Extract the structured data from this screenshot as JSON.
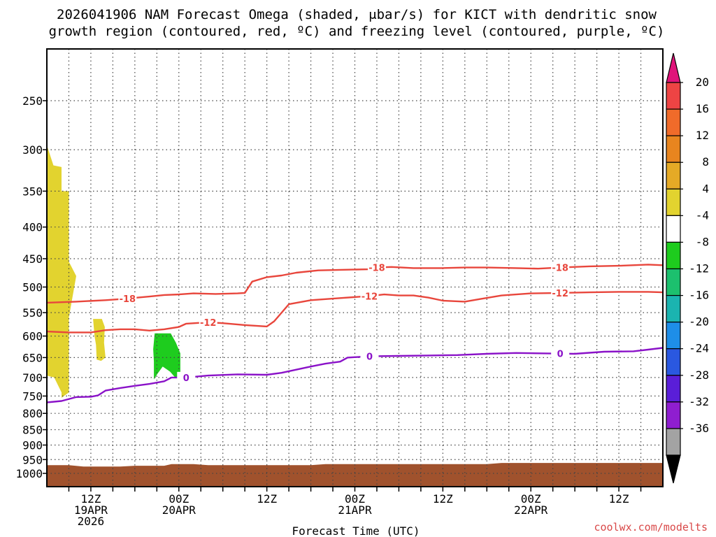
{
  "chart_data": {
    "type": "time-height contour",
    "title_line1": "2026041906 NAM Forecast Omega (shaded, μbar/s) for KICT with dendritic snow",
    "title_line2": "growth region (contoured, red, ºC) and freezing level (contoured, purple, ºC)",
    "xlabel": "Forecast Time (UTC)",
    "credit": "coolwx.com/modelts",
    "x_range_hours": [
      0,
      84
    ],
    "y_scale": "log-pressure",
    "y_range_mb": [
      200,
      1050
    ],
    "y_ticks": [
      250,
      300,
      350,
      400,
      450,
      500,
      550,
      600,
      650,
      700,
      750,
      800,
      850,
      900,
      950,
      1000
    ],
    "x_ticks": [
      {
        "hour": 6,
        "line1": "12Z",
        "line2": "19APR",
        "line3": "2026"
      },
      {
        "hour": 18,
        "line1": "00Z",
        "line2": "20APR",
        "line3": ""
      },
      {
        "hour": 30,
        "line1": "12Z",
        "line2": "",
        "line3": ""
      },
      {
        "hour": 42,
        "line1": "00Z",
        "line2": "21APR",
        "line3": ""
      },
      {
        "hour": 54,
        "line1": "12Z",
        "line2": "",
        "line3": ""
      },
      {
        "hour": 66,
        "line1": "00Z",
        "line2": "22APR",
        "line3": ""
      },
      {
        "hour": 78,
        "line1": "12Z",
        "line2": "",
        "line3": ""
      }
    ],
    "grid": true,
    "colorbar": {
      "labels": [
        "20",
        "16",
        "12",
        "8",
        "4",
        "-4",
        "-8",
        "-12",
        "-16",
        "-20",
        "-24",
        "-28",
        "-32",
        "-36"
      ],
      "colors": [
        "#ee4444",
        "#f06b2a",
        "#e8851f",
        "#e5aa26",
        "#e2d32f",
        "#ffffff",
        "#1ecc1e",
        "#1cc06e",
        "#1bb4b0",
        "#1e8ee8",
        "#2a58e0",
        "#5a1ed8",
        "#8f1ed0",
        "#a3a3a3"
      ],
      "top_arrow_color": "#e0147a",
      "bottom_arrow_color": "#000000"
    },
    "contours": [
      {
        "name": "-18",
        "color": "#e8463c",
        "label": "-18",
        "points": [
          [
            0,
            530
          ],
          [
            4,
            528
          ],
          [
            8,
            525
          ],
          [
            10,
            523
          ],
          [
            14,
            518
          ],
          [
            16,
            515
          ],
          [
            18,
            514
          ],
          [
            20,
            512
          ],
          [
            23,
            513
          ],
          [
            26,
            512
          ],
          [
            27,
            511
          ],
          [
            28,
            490
          ],
          [
            30,
            482
          ],
          [
            32,
            479
          ],
          [
            34,
            474
          ],
          [
            37,
            470
          ],
          [
            40,
            469
          ],
          [
            44,
            468
          ],
          [
            45,
            465
          ],
          [
            47,
            464
          ],
          [
            50,
            466
          ],
          [
            54,
            466
          ],
          [
            57,
            465
          ],
          [
            60,
            465
          ],
          [
            64,
            466
          ],
          [
            67,
            467
          ],
          [
            70,
            465
          ],
          [
            74,
            463
          ],
          [
            78,
            462
          ],
          [
            82,
            460
          ],
          [
            84,
            461
          ]
        ],
        "label_hours": [
          45,
          70,
          11
        ]
      },
      {
        "name": "-12",
        "color": "#e8463c",
        "label": "-12",
        "points": [
          [
            0,
            590
          ],
          [
            3,
            592
          ],
          [
            6,
            592
          ],
          [
            8,
            587
          ],
          [
            10,
            585
          ],
          [
            12,
            585
          ],
          [
            14,
            588
          ],
          [
            16,
            585
          ],
          [
            18,
            580
          ],
          [
            19,
            573
          ],
          [
            22,
            570
          ],
          [
            24,
            572
          ],
          [
            27,
            576
          ],
          [
            30,
            579
          ],
          [
            31,
            568
          ],
          [
            33,
            533
          ],
          [
            36,
            525
          ],
          [
            40,
            521
          ],
          [
            44,
            517
          ],
          [
            46,
            514
          ],
          [
            48,
            516
          ],
          [
            50,
            516
          ],
          [
            52,
            520
          ],
          [
            54,
            526
          ],
          [
            57,
            528
          ],
          [
            59,
            523
          ],
          [
            62,
            516
          ],
          [
            66,
            512
          ],
          [
            70,
            511
          ],
          [
            74,
            510
          ],
          [
            78,
            509
          ],
          [
            82,
            509
          ],
          [
            84,
            510
          ]
        ],
        "label_hours": [
          22,
          44,
          70
        ]
      },
      {
        "name": "0",
        "color": "#8a12c8",
        "label": "0",
        "points": [
          [
            0,
            768
          ],
          [
            2,
            764
          ],
          [
            4,
            753
          ],
          [
            6,
            752
          ],
          [
            7,
            748
          ],
          [
            8,
            735
          ],
          [
            10,
            728
          ],
          [
            12,
            722
          ],
          [
            14,
            717
          ],
          [
            16,
            710
          ],
          [
            17,
            700
          ],
          [
            19,
            700
          ],
          [
            22,
            695
          ],
          [
            26,
            692
          ],
          [
            30,
            693
          ],
          [
            32,
            688
          ],
          [
            34,
            680
          ],
          [
            36,
            672
          ],
          [
            38,
            665
          ],
          [
            40,
            660
          ],
          [
            41,
            650
          ],
          [
            44,
            647
          ],
          [
            48,
            646
          ],
          [
            52,
            645
          ],
          [
            56,
            644
          ],
          [
            60,
            641
          ],
          [
            64,
            639
          ],
          [
            68,
            640
          ],
          [
            72,
            641
          ],
          [
            76,
            636
          ],
          [
            80,
            635
          ],
          [
            82,
            631
          ],
          [
            84,
            627
          ]
        ],
        "label_hours": [
          19,
          44,
          70
        ]
      }
    ],
    "shaded_regions": [
      {
        "name": "omega-4to8-column",
        "color": "#e2d32f",
        "points": [
          [
            0,
            295
          ],
          [
            0.9,
            318
          ],
          [
            2,
            320
          ],
          [
            2,
            350
          ],
          [
            3,
            350
          ],
          [
            3,
            455
          ],
          [
            4,
            480
          ],
          [
            3,
            560
          ],
          [
            3,
            740
          ],
          [
            2,
            755
          ],
          [
            2,
            740
          ],
          [
            1,
            700
          ],
          [
            0,
            695
          ]
        ]
      },
      {
        "name": "omega-4to8-small",
        "color": "#e2d32f",
        "points": [
          [
            6.3,
            563
          ],
          [
            7.5,
            563
          ],
          [
            7.9,
            580
          ],
          [
            7.8,
            615
          ],
          [
            8,
            650
          ],
          [
            7.4,
            658
          ],
          [
            6.8,
            655
          ],
          [
            6.7,
            620
          ],
          [
            6.5,
            600
          ]
        ]
      },
      {
        "name": "omega-neg8to4-green",
        "color": "#1ecc1e",
        "points": [
          [
            14.7,
            594
          ],
          [
            16.9,
            594
          ],
          [
            17.6,
            615
          ],
          [
            18.2,
            640
          ],
          [
            18.2,
            700
          ],
          [
            17.5,
            700
          ],
          [
            16.8,
            685
          ],
          [
            15.8,
            672
          ],
          [
            15.1,
            690
          ],
          [
            14.6,
            705
          ],
          [
            14.6,
            660
          ],
          [
            14.5,
            630
          ]
        ]
      }
    ],
    "ground": {
      "name": "terrain",
      "color": "#a0522d",
      "points": [
        [
          0,
          970
        ],
        [
          3,
          970
        ],
        [
          5,
          975
        ],
        [
          10,
          975
        ],
        [
          12,
          972
        ],
        [
          16,
          972
        ],
        [
          17,
          966
        ],
        [
          20,
          966
        ],
        [
          22,
          970
        ],
        [
          36,
          970
        ],
        [
          38,
          966
        ],
        [
          60,
          966
        ],
        [
          62,
          962
        ],
        [
          84,
          962
        ]
      ]
    }
  }
}
